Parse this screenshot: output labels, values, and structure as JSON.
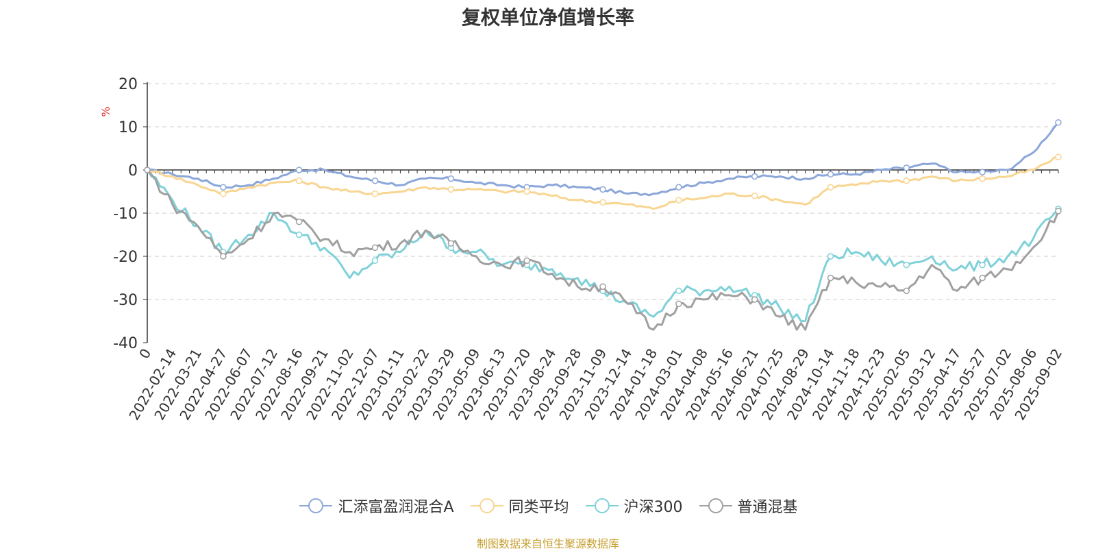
{
  "title": "复权单位净值增长率",
  "source": "制图数据来自恒生聚源数据库",
  "chart_data": {
    "type": "line",
    "title": "复权单位净值增长率",
    "ylabel": "%",
    "ylim": [
      -40,
      20
    ],
    "yticks": [
      20,
      10,
      0,
      -10,
      -20,
      -30,
      -40
    ],
    "grid": true,
    "legend_position": "bottom-center",
    "x_tick_labels": [
      "0",
      "2022-02-14",
      "2022-03-21",
      "2022-04-27",
      "2022-06-07",
      "2022-07-12",
      "2022-08-16",
      "2022-09-21",
      "2022-11-02",
      "2022-12-07",
      "2023-01-11",
      "2023-02-22",
      "2023-03-29",
      "2023-05-09",
      "2023-06-13",
      "2023-07-20",
      "2023-08-24",
      "2023-09-28",
      "2023-11-09",
      "2023-12-14",
      "2024-01-18",
      "2024-03-01",
      "2024-04-08",
      "2024-05-16",
      "2024-06-21",
      "2024-07-25",
      "2024-08-29",
      "2024-10-14",
      "2024-11-18",
      "2024-12-23",
      "2025-02-05",
      "2025-03-12",
      "2025-04-17",
      "2025-05-27",
      "2025-07-02",
      "2025-08-06",
      "2025-09-02"
    ],
    "series": [
      {
        "name": "汇添富盈润混合A",
        "color": "#8ba6d9",
        "values": [
          0,
          -1,
          -2,
          -4,
          -3.5,
          -2,
          0,
          0,
          -1.5,
          -2.5,
          -3.5,
          -2,
          -2,
          -3,
          -3.5,
          -4,
          -3.5,
          -4,
          -4.5,
          -5.5,
          -5.5,
          -4,
          -3,
          -2,
          -1.5,
          -1.5,
          -2,
          -1,
          -1,
          0,
          0.5,
          1.5,
          -0.5,
          -0.5,
          0,
          4,
          11
        ]
      },
      {
        "name": "同类平均",
        "color": "#f8d591",
        "values": [
          0,
          -1.5,
          -3.5,
          -5.5,
          -4,
          -3,
          -2.5,
          -4,
          -5,
          -5.5,
          -5,
          -4,
          -4.5,
          -4.5,
          -5,
          -5,
          -6,
          -7,
          -7.5,
          -8,
          -9,
          -7,
          -6.5,
          -5.5,
          -6,
          -7,
          -8,
          -4,
          -3.5,
          -2.5,
          -2.5,
          -1.5,
          -2.5,
          -2,
          -1.5,
          0,
          3
        ]
      },
      {
        "name": "沪深300",
        "color": "#7fd1d9",
        "values": [
          0,
          -7,
          -13,
          -19,
          -15,
          -10,
          -15,
          -18,
          -25,
          -21,
          -19,
          -14,
          -18,
          -19,
          -22,
          -22,
          -23,
          -25,
          -28,
          -31,
          -34,
          -28,
          -28,
          -27,
          -29,
          -32,
          -35,
          -20,
          -19,
          -21,
          -22,
          -20,
          -23,
          -22,
          -20,
          -16,
          -9
        ]
      },
      {
        "name": "普通混基",
        "color": "#a0a0a0",
        "values": [
          0,
          -8,
          -13,
          -20,
          -16,
          -10,
          -12,
          -16,
          -19,
          -18,
          -17,
          -14,
          -17,
          -20,
          -22,
          -21,
          -24,
          -27,
          -27,
          -31,
          -37,
          -31,
          -30,
          -29,
          -30,
          -34,
          -37,
          -25,
          -26,
          -27,
          -28,
          -22,
          -28,
          -25,
          -23,
          -18,
          -9.5
        ]
      }
    ]
  }
}
